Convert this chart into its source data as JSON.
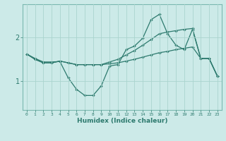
{
  "xlabel": "Humidex (Indice chaleur)",
  "background_color": "#cceae8",
  "line_color": "#2d7a6e",
  "grid_color": "#aad4ce",
  "x": [
    0,
    1,
    2,
    3,
    4,
    5,
    6,
    7,
    8,
    9,
    10,
    11,
    12,
    13,
    14,
    15,
    16,
    17,
    18,
    19,
    20,
    21,
    22,
    23
  ],
  "line1": [
    1.62,
    1.52,
    1.44,
    1.44,
    1.45,
    1.08,
    0.82,
    0.68,
    0.68,
    0.9,
    1.35,
    1.38,
    1.72,
    1.8,
    1.98,
    2.4,
    2.52,
    2.08,
    1.82,
    1.72,
    2.18,
    1.52,
    1.52,
    1.12
  ],
  "line2": [
    1.62,
    1.5,
    1.42,
    1.42,
    1.46,
    1.42,
    1.38,
    1.38,
    1.38,
    1.38,
    1.44,
    1.5,
    1.6,
    1.7,
    1.82,
    1.95,
    2.08,
    2.12,
    2.15,
    2.18,
    2.2,
    1.52,
    1.52,
    1.12
  ],
  "line3": [
    1.62,
    1.5,
    1.42,
    1.42,
    1.46,
    1.42,
    1.38,
    1.38,
    1.38,
    1.38,
    1.4,
    1.42,
    1.46,
    1.5,
    1.55,
    1.6,
    1.65,
    1.68,
    1.72,
    1.75,
    1.78,
    1.52,
    1.52,
    1.12
  ],
  "yticks": [
    1,
    2
  ],
  "ylim": [
    0.35,
    2.75
  ],
  "xlim": [
    -0.5,
    23.5
  ]
}
